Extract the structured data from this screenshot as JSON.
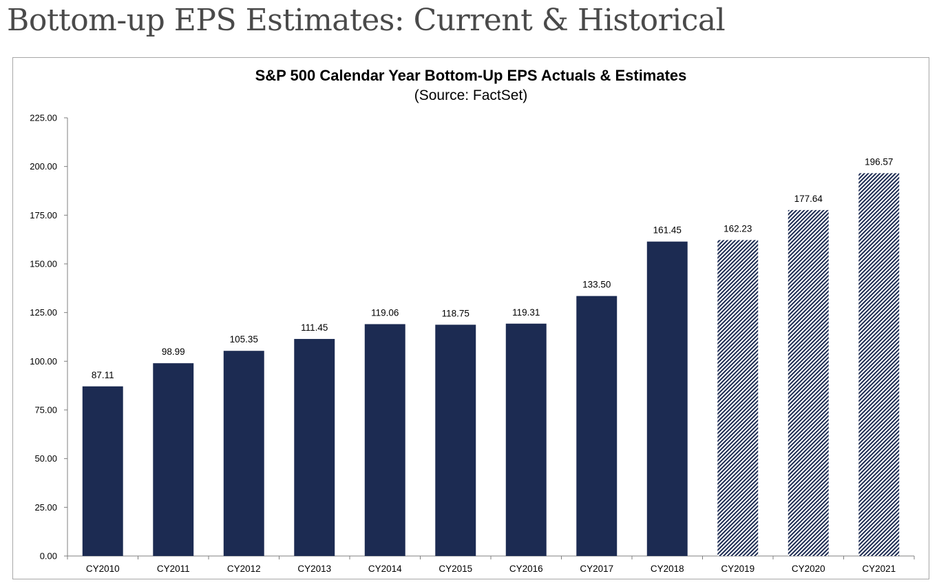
{
  "page": {
    "heading": "Bottom-up EPS Estimates: Current & Historical"
  },
  "chart_data": {
    "type": "bar",
    "title": "S&P 500 Calendar Year Bottom-Up EPS Actuals & Estimates",
    "subtitle": "(Source: FactSet)",
    "xlabel": "",
    "ylabel": "",
    "ylim": [
      0,
      225
    ],
    "yticks": [
      "0.00",
      "25.00",
      "50.00",
      "75.00",
      "100.00",
      "125.00",
      "150.00",
      "175.00",
      "200.00",
      "225.00"
    ],
    "grid": false,
    "legend": "none",
    "categories": [
      "CY2010",
      "CY2011",
      "CY2012",
      "CY2013",
      "CY2014",
      "CY2015",
      "CY2016",
      "CY2017",
      "CY2018",
      "CY2019",
      "CY2020",
      "CY2021"
    ],
    "values": [
      87.11,
      98.99,
      105.35,
      111.45,
      119.06,
      118.75,
      119.31,
      133.5,
      161.45,
      162.23,
      177.64,
      196.57
    ],
    "value_labels": [
      "87.11",
      "98.99",
      "105.35",
      "111.45",
      "119.06",
      "118.75",
      "119.31",
      "133.50",
      "161.45",
      "162.23",
      "177.64",
      "196.57"
    ],
    "styles": [
      "solid",
      "solid",
      "solid",
      "solid",
      "solid",
      "solid",
      "solid",
      "solid",
      "solid",
      "hatched",
      "hatched",
      "hatched"
    ],
    "colors": {
      "bar": "#1c2b52",
      "hatch": "#1c2b52",
      "axis": "#7f7f7f"
    }
  }
}
